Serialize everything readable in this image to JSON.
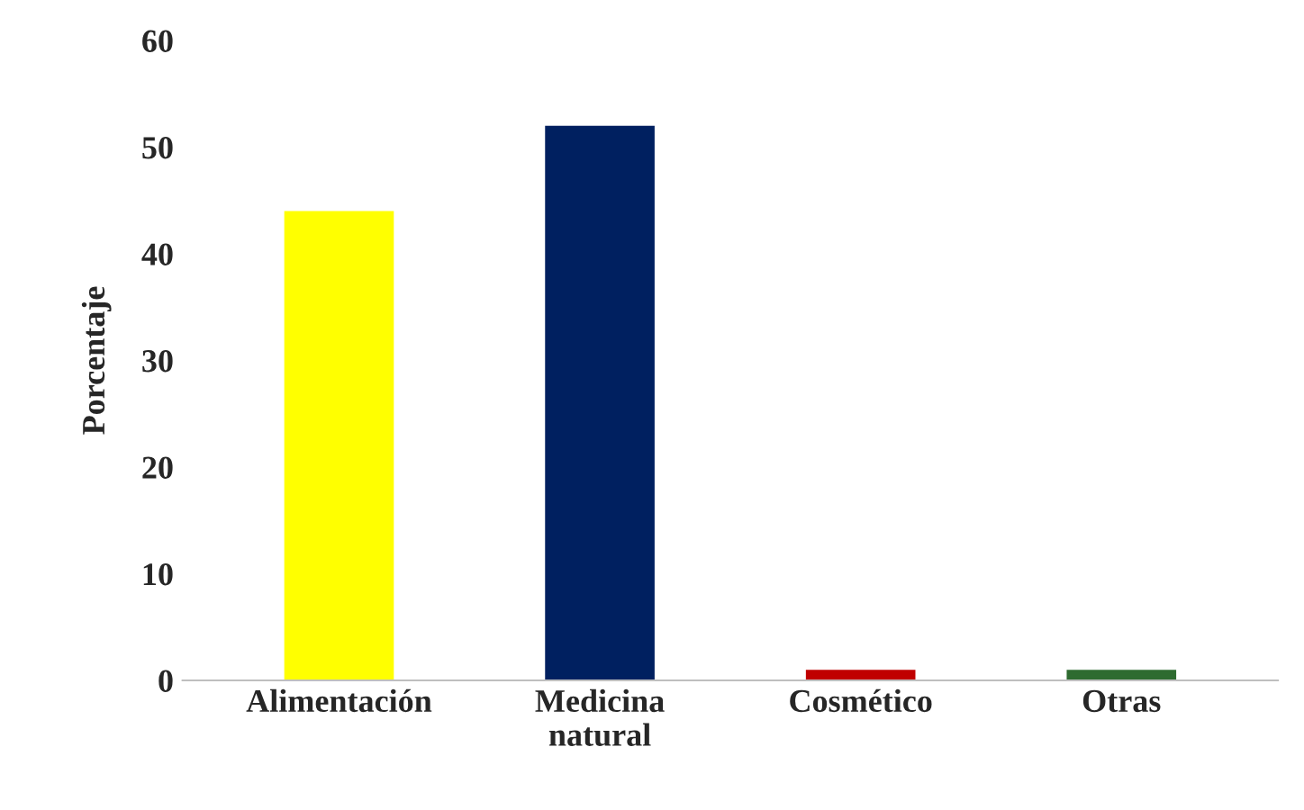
{
  "chart_data": {
    "type": "bar",
    "ylabel": "Porcentaje",
    "categories": [
      "Alimentación",
      "Medicina\nnatural",
      "Cosmético",
      "Otras"
    ],
    "values": [
      44,
      52,
      1,
      1
    ],
    "colors": [
      "#ffff00",
      "#002060",
      "#c00000",
      "#2e6b30"
    ],
    "ylim": [
      0,
      60
    ],
    "yticks": [
      0,
      10,
      20,
      30,
      40,
      50,
      60
    ],
    "grid": false,
    "legend": false
  }
}
